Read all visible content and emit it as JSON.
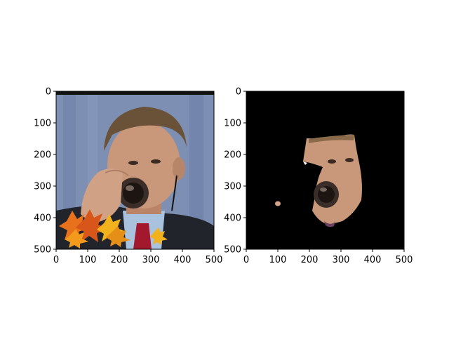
{
  "chart_data": [
    {
      "type": "image",
      "title": "",
      "xlabel": "",
      "ylabel": "",
      "xlim": [
        0,
        500
      ],
      "ylim": [
        500,
        0
      ],
      "x_ticks": [
        "0",
        "100",
        "200",
        "300",
        "400",
        "500"
      ],
      "y_ticks": [
        "0",
        "100",
        "200",
        "300",
        "400",
        "500"
      ],
      "content": "photo of a man in a suit drinking from a glass, with orange/yellow maple leaves in the lower-left"
    },
    {
      "type": "image",
      "title": "",
      "xlabel": "",
      "ylabel": "",
      "xlim": [
        0,
        500
      ],
      "ylim": [
        500,
        0
      ],
      "x_ticks": [
        "0",
        "100",
        "200",
        "300",
        "400",
        "500"
      ],
      "y_ticks": [
        "0",
        "100",
        "200",
        "300",
        "400",
        "500"
      ],
      "content": "segmentation mask result: black background with only the face/skin region visible"
    }
  ],
  "colors": {
    "background": "#ffffff",
    "mask_black": "#000000",
    "photo_backdrop": "#7d8fb3",
    "suit": "#22242c",
    "shirt": "#a9c3df",
    "tie": "#a3182c",
    "skin": "#c99779",
    "hair": "#6a5238",
    "leaf_orange": "#e8721c",
    "leaf_yellow": "#f2b21e"
  }
}
